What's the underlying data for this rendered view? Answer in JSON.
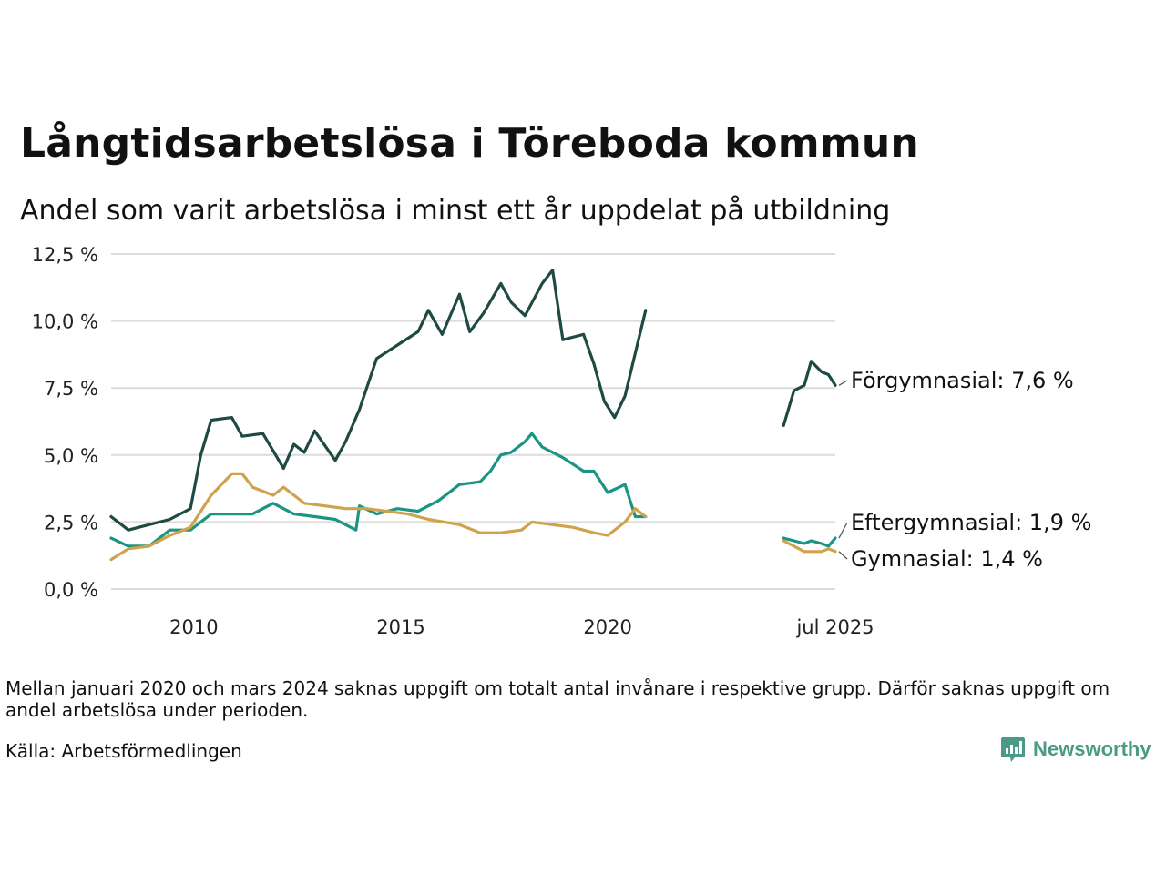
{
  "title": "Långtidsarbetslösa i Töreboda kommun",
  "subtitle": "Andel som varit arbetslösa i minst ett år uppdelat på utbildning",
  "note": "Mellan januari 2020 och mars 2024 saknas uppgift om totalt antal invånare i respektive grupp. Därför saknas uppgift om andel arbetslösa under perioden.",
  "source": "Källa: Arbetsförmedlingen",
  "logo": {
    "text": "Newsworthy",
    "icon": "bar-chart-icon",
    "color": "#4a9a86"
  },
  "chart_data": {
    "type": "line",
    "x_axis_type": "date",
    "xlim": [
      "2008-01",
      "2025-07"
    ],
    "ylim": [
      0,
      12.5
    ],
    "y_ticks": [
      0,
      2.5,
      5,
      7.5,
      10,
      12.5
    ],
    "y_tick_labels": [
      "0,0 %",
      "2,5 %",
      "5,0 %",
      "7,5 %",
      "10,0 %",
      "12,5 %"
    ],
    "x_ticks": [
      "2010-01",
      "2015-01",
      "2020-01",
      "2025-07"
    ],
    "x_tick_labels": [
      "2010",
      "2015",
      "2020",
      "jul 2025"
    ],
    "grid": "horizontal",
    "legend": "direct labels at line ends",
    "series": [
      {
        "name": "Förgymnasial",
        "end_label": "Förgymnasial: 7,6 %",
        "color": "#1f4a43",
        "segments": [
          [
            [
              "2008-01",
              2.7
            ],
            [
              "2008-06",
              2.2
            ],
            [
              "2008-12",
              2.4
            ],
            [
              "2009-06",
              2.6
            ],
            [
              "2009-12",
              3.0
            ],
            [
              "2010-03",
              5.0
            ],
            [
              "2010-06",
              6.3
            ],
            [
              "2010-12",
              6.4
            ],
            [
              "2011-03",
              5.7
            ],
            [
              "2011-09",
              5.8
            ],
            [
              "2012-03",
              4.5
            ],
            [
              "2012-06",
              5.4
            ],
            [
              "2012-09",
              5.1
            ],
            [
              "2012-12",
              5.9
            ],
            [
              "2013-06",
              4.8
            ],
            [
              "2013-09",
              5.5
            ],
            [
              "2014-01",
              6.7
            ],
            [
              "2014-06",
              8.6
            ],
            [
              "2014-12",
              9.1
            ],
            [
              "2015-06",
              9.6
            ],
            [
              "2015-09",
              10.4
            ],
            [
              "2016-01",
              9.5
            ],
            [
              "2016-06",
              11.0
            ],
            [
              "2016-09",
              9.6
            ],
            [
              "2017-01",
              10.3
            ],
            [
              "2017-06",
              11.4
            ],
            [
              "2017-09",
              10.7
            ],
            [
              "2018-01",
              10.2
            ],
            [
              "2018-06",
              11.4
            ],
            [
              "2018-09",
              11.9
            ],
            [
              "2018-12",
              9.3
            ],
            [
              "2019-06",
              9.5
            ],
            [
              "2019-09",
              8.4
            ],
            [
              "2019-12",
              7.0
            ],
            [
              "2020-03",
              6.4
            ],
            [
              "2020-06",
              7.2
            ],
            [
              "2020-09",
              8.8
            ],
            [
              "2020-12",
              10.4
            ]
          ],
          [
            [
              "2024-04",
              6.1
            ],
            [
              "2024-07",
              7.4
            ],
            [
              "2024-10",
              7.6
            ],
            [
              "2024-12",
              8.5
            ],
            [
              "2025-03",
              8.1
            ],
            [
              "2025-05",
              8.0
            ],
            [
              "2025-07",
              7.6
            ]
          ]
        ]
      },
      {
        "name": "Eftergymnasial",
        "end_label": "Eftergymnasial: 1,9 %",
        "color": "#1a9583",
        "segments": [
          [
            [
              "2008-01",
              1.9
            ],
            [
              "2008-06",
              1.6
            ],
            [
              "2008-12",
              1.6
            ],
            [
              "2009-06",
              2.2
            ],
            [
              "2009-12",
              2.2
            ],
            [
              "2010-06",
              2.8
            ],
            [
              "2010-12",
              2.8
            ],
            [
              "2011-06",
              2.8
            ],
            [
              "2011-12",
              3.2
            ],
            [
              "2012-06",
              2.8
            ],
            [
              "2012-12",
              2.7
            ],
            [
              "2013-06",
              2.6
            ],
            [
              "2013-12",
              2.2
            ],
            [
              "2014-01",
              3.1
            ],
            [
              "2014-06",
              2.8
            ],
            [
              "2014-12",
              3.0
            ],
            [
              "2015-06",
              2.9
            ],
            [
              "2015-12",
              3.3
            ],
            [
              "2016-06",
              3.9
            ],
            [
              "2016-12",
              4.0
            ],
            [
              "2017-03",
              4.4
            ],
            [
              "2017-06",
              5.0
            ],
            [
              "2017-09",
              5.1
            ],
            [
              "2018-01",
              5.5
            ],
            [
              "2018-03",
              5.8
            ],
            [
              "2018-06",
              5.3
            ],
            [
              "2018-12",
              4.9
            ],
            [
              "2019-06",
              4.4
            ],
            [
              "2019-09",
              4.4
            ],
            [
              "2020-01",
              3.6
            ],
            [
              "2020-06",
              3.9
            ],
            [
              "2020-09",
              2.7
            ],
            [
              "2020-12",
              2.7
            ]
          ],
          [
            [
              "2024-04",
              1.9
            ],
            [
              "2024-07",
              1.8
            ],
            [
              "2024-10",
              1.7
            ],
            [
              "2024-12",
              1.8
            ],
            [
              "2025-03",
              1.7
            ],
            [
              "2025-05",
              1.6
            ],
            [
              "2025-07",
              1.9
            ]
          ]
        ]
      },
      {
        "name": "Gymnasial",
        "end_label": "Gymnasial: 1,4 %",
        "color": "#d0a24c",
        "segments": [
          [
            [
              "2008-01",
              1.1
            ],
            [
              "2008-06",
              1.5
            ],
            [
              "2008-12",
              1.6
            ],
            [
              "2009-06",
              2.0
            ],
            [
              "2009-12",
              2.3
            ],
            [
              "2010-06",
              3.5
            ],
            [
              "2010-12",
              4.3
            ],
            [
              "2011-03",
              4.3
            ],
            [
              "2011-06",
              3.8
            ],
            [
              "2011-12",
              3.5
            ],
            [
              "2012-03",
              3.8
            ],
            [
              "2012-09",
              3.2
            ],
            [
              "2013-03",
              3.1
            ],
            [
              "2013-09",
              3.0
            ],
            [
              "2014-03",
              3.0
            ],
            [
              "2014-09",
              2.9
            ],
            [
              "2015-03",
              2.8
            ],
            [
              "2015-09",
              2.6
            ],
            [
              "2016-06",
              2.4
            ],
            [
              "2016-12",
              2.1
            ],
            [
              "2017-06",
              2.1
            ],
            [
              "2017-12",
              2.2
            ],
            [
              "2018-03",
              2.5
            ],
            [
              "2018-09",
              2.4
            ],
            [
              "2019-03",
              2.3
            ],
            [
              "2019-09",
              2.1
            ],
            [
              "2020-01",
              2.0
            ],
            [
              "2020-06",
              2.5
            ],
            [
              "2020-09",
              3.0
            ],
            [
              "2020-12",
              2.7
            ]
          ],
          [
            [
              "2024-04",
              1.8
            ],
            [
              "2024-07",
              1.6
            ],
            [
              "2024-10",
              1.4
            ],
            [
              "2024-12",
              1.4
            ],
            [
              "2025-03",
              1.4
            ],
            [
              "2025-05",
              1.5
            ],
            [
              "2025-07",
              1.4
            ]
          ]
        ]
      }
    ]
  }
}
